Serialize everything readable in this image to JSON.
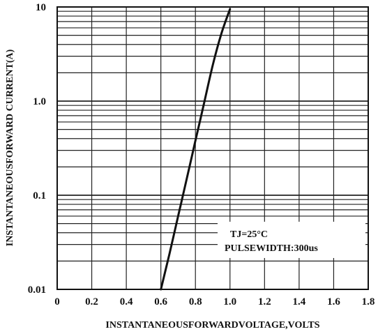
{
  "chart_data": {
    "type": "line",
    "xlabel": "INSTANTANEOUSFORWARDVOLTAGE,VOLTS",
    "ylabel": "INSTANTANEOUSFORWARD CURRENT(A)",
    "x_ticks": [
      "0",
      "0.2",
      "0.4",
      "0.6",
      "0.8",
      "1.0",
      "1.2",
      "1.4",
      "1.6",
      "1.8"
    ],
    "y_ticks": [
      "0.01",
      "0.1",
      "1.0",
      "10"
    ],
    "xlim": [
      0,
      1.8
    ],
    "ylim": [
      0.01,
      10
    ],
    "y_scale": "log",
    "grid": true,
    "annotations": [
      "TJ=25°C",
      "PULSEWIDTH:300us"
    ],
    "series": [
      {
        "x": [
          0.6,
          0.65,
          0.7,
          0.75,
          0.8,
          0.85,
          0.9,
          0.95,
          1.0
        ],
        "y": [
          0.01,
          0.024,
          0.06,
          0.15,
          0.38,
          0.95,
          2.4,
          5.2,
          9.5
        ]
      }
    ]
  }
}
